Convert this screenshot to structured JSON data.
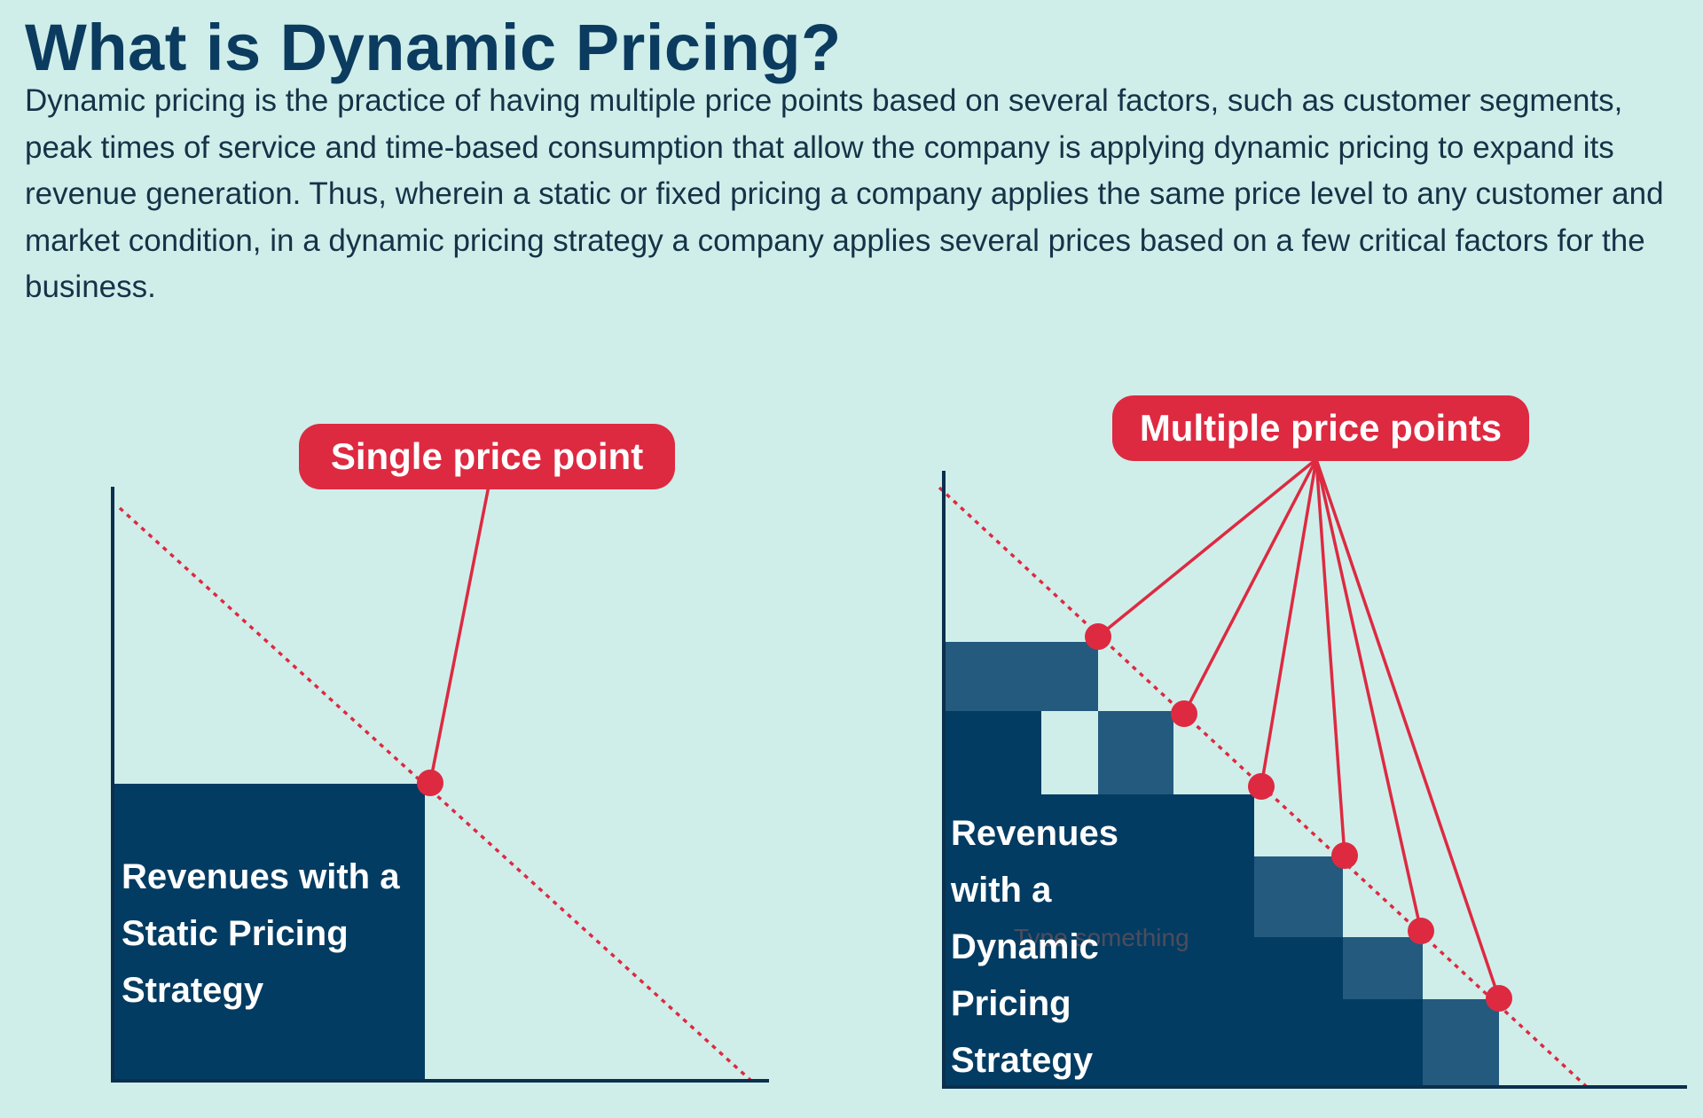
{
  "title": "What is Dynamic Pricing?",
  "intro": "Dynamic pricing is the practice of having multiple price points based on several factors, such as customer segments, peak times of service and time-based consumption that allow the company is applying dynamic pricing to expand its revenue generation. Thus, wherein a static or fixed pricing a company applies the same price level to any customer and market condition, in a dynamic pricing strategy a company applies several prices based on a few critical factors for the business.",
  "static_diagram": {
    "callout": "Single price point",
    "revenue_label": "Revenues with a Static Pricing Strategy"
  },
  "dynamic_diagram": {
    "callout": "Multiple price points",
    "revenue_label": "Revenues with a Dynamic Pricing Strategy",
    "price_point_count": 6,
    "faint_text": "Type something"
  },
  "colors": {
    "background": "#cfeeea",
    "title": "#0b3b5e",
    "revenue_fill": "#033c62",
    "step_fill": "#235a7e",
    "accent_red": "#dd2a41",
    "axis": "#0b2f4c"
  }
}
